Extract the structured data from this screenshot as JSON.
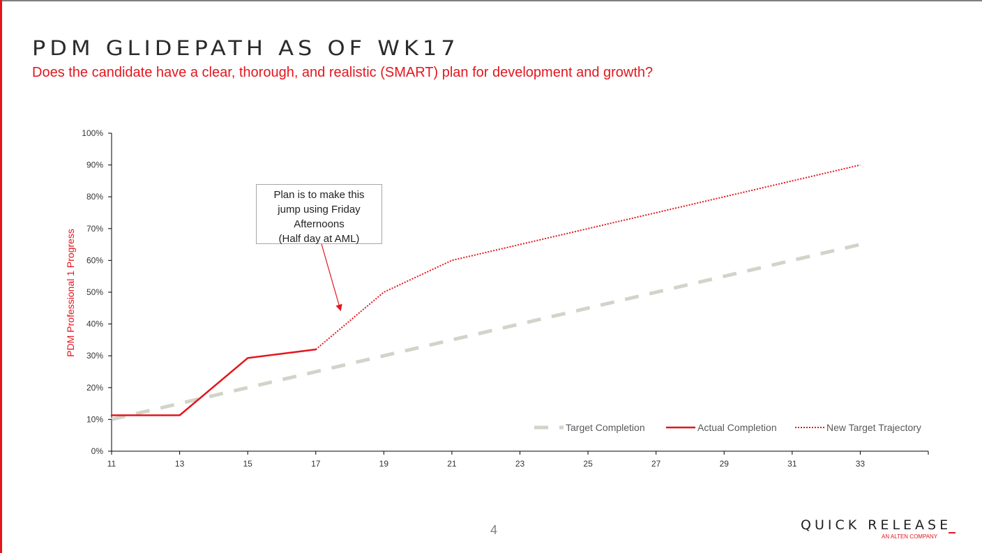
{
  "slide": {
    "title": "PDM GLIDEPATH AS OF WK17",
    "subtitle": "Does the candidate have a clear, thorough, and realistic (SMART) plan for development and growth?",
    "page_number": "4",
    "logo_main": "QUICK RELEASE",
    "logo_sub": "AN ALTEN COMPANY",
    "accent_color": "#e3161d"
  },
  "callout": {
    "lines": [
      "Plan is to make this",
      "jump using Friday",
      "Afternoons",
      "(Half day at AML)"
    ]
  },
  "chart_data": {
    "type": "line",
    "title": "",
    "xlabel": "",
    "ylabel": "PDM Professional 1 Progress",
    "xlim": [
      11,
      35
    ],
    "ylim": [
      0,
      100
    ],
    "x_ticks": [
      11,
      13,
      15,
      17,
      19,
      21,
      23,
      25,
      27,
      29,
      31,
      33
    ],
    "y_ticks": [
      0,
      10,
      20,
      30,
      40,
      50,
      60,
      70,
      80,
      90,
      100
    ],
    "y_tick_format": "percent",
    "grid": false,
    "legend_position": "bottom-right",
    "series": [
      {
        "name": "Target Completion",
        "style": "dashed",
        "color": "#d0d4c9",
        "x": [
          11,
          13,
          15,
          17,
          19,
          21,
          23,
          25,
          27,
          29,
          31,
          33
        ],
        "y": [
          10,
          15,
          20,
          25,
          30,
          35,
          40,
          45,
          50,
          55,
          60,
          65
        ]
      },
      {
        "name": "Actual Completion",
        "style": "solid",
        "color": "#e3161d",
        "x": [
          11,
          13,
          15,
          17
        ],
        "y": [
          11.3,
          11.3,
          29.3,
          32
        ]
      },
      {
        "name": "New Target Trajectory",
        "style": "dotted",
        "color": "#e3161d",
        "x": [
          17,
          19,
          21,
          23,
          25,
          27,
          29,
          31,
          33
        ],
        "y": [
          32,
          50,
          60,
          65,
          70,
          75,
          80,
          85,
          90
        ]
      }
    ]
  }
}
